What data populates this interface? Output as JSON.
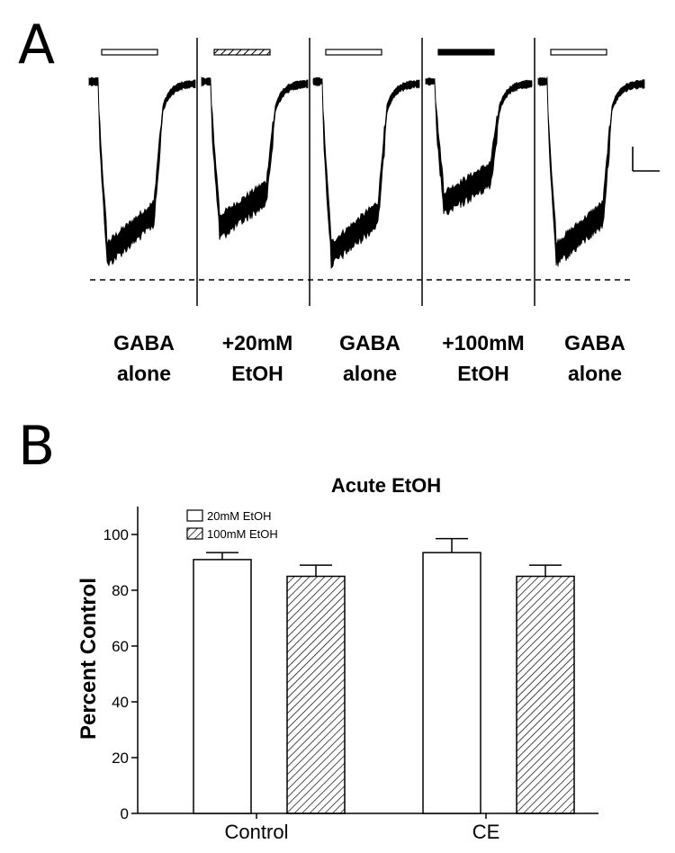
{
  "panel_a": {
    "letter": "A",
    "conditions": [
      {
        "line1": "GABA",
        "line2": "alone",
        "bar_style": "open",
        "color": "#ffffff"
      },
      {
        "line1": "+20mM",
        "line2": "EtOH",
        "bar_style": "hatched",
        "color": "#ffffff"
      },
      {
        "line1": "GABA",
        "line2": "alone",
        "bar_style": "open",
        "color": "#ffffff"
      },
      {
        "line1": "+100mM",
        "line2": "EtOH",
        "bar_style": "solid",
        "color": "#000000"
      },
      {
        "line1": "GABA",
        "line2": "alone",
        "bar_style": "open",
        "color": "#ffffff"
      }
    ],
    "relative_peak_amplitude": [
      1.0,
      0.85,
      1.0,
      0.72,
      1.0
    ],
    "trace_color": "#000000"
  },
  "panel_b": {
    "letter": "B"
  },
  "chart_data": {
    "type": "bar",
    "title": "Acute EtOH",
    "xlabel": "",
    "ylabel": "Percent Control",
    "categories": [
      "Control",
      "CE"
    ],
    "series": [
      {
        "name": "20mM EtOH",
        "values": [
          91,
          93.5
        ],
        "errors": [
          2.5,
          5
        ],
        "fill": "open"
      },
      {
        "name": "100mM EtOH",
        "values": [
          85,
          85
        ],
        "errors": [
          4,
          4
        ],
        "fill": "hatched"
      }
    ],
    "ylim": [
      0,
      110
    ],
    "yticks": [
      "0",
      "20",
      "40",
      "60",
      "80",
      "100"
    ],
    "legend": "top-left",
    "grid": false
  }
}
